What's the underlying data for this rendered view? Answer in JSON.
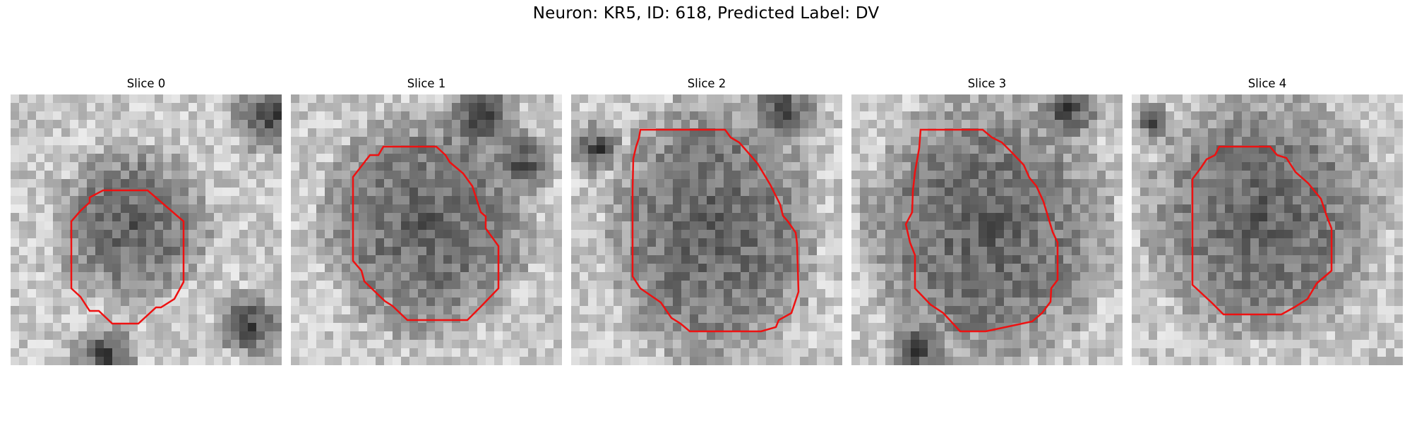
{
  "figure": {
    "title": "Neuron: KR5, ID: 618, Predicted Label: DV"
  },
  "slices": [
    {
      "label": "Slice 0"
    },
    {
      "label": "Slice 1"
    },
    {
      "label": "Slice 2"
    },
    {
      "label": "Slice 3"
    },
    {
      "label": "Slice 4"
    }
  ],
  "colors": {
    "contour": "#ee1111",
    "background": "#ffffff"
  }
}
